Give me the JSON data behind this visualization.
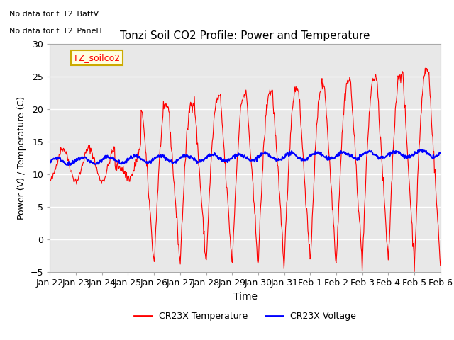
{
  "title": "Tonzi Soil CO2 Profile: Power and Temperature",
  "xlabel": "Time",
  "ylabel": "Power (V) / Temperature (C)",
  "ylim": [
    -5,
    30
  ],
  "yticks": [
    -5,
    0,
    5,
    10,
    15,
    20,
    25,
    30
  ],
  "x_labels": [
    "Jan 22",
    "Jan 23",
    "Jan 24",
    "Jan 25",
    "Jan 26",
    "Jan 27",
    "Jan 28",
    "Jan 29",
    "Jan 30",
    "Jan 31",
    "Feb 1",
    "Feb 2",
    "Feb 3",
    "Feb 4",
    "Feb 5",
    "Feb 6"
  ],
  "no_data_text1": "No data for f_T2_BattV",
  "no_data_text2": "No data for f_T2_PanelT",
  "legend_label_box": "TZ_soilco2",
  "legend_line1": "CR23X Temperature",
  "legend_line2": "CR23X Voltage",
  "bg_color": "#ffffff",
  "plot_bg_color": "#e8e8e8",
  "grid_color": "#ffffff",
  "temp_color": "#ff0000",
  "volt_color": "#0000ff",
  "n_days": 15
}
